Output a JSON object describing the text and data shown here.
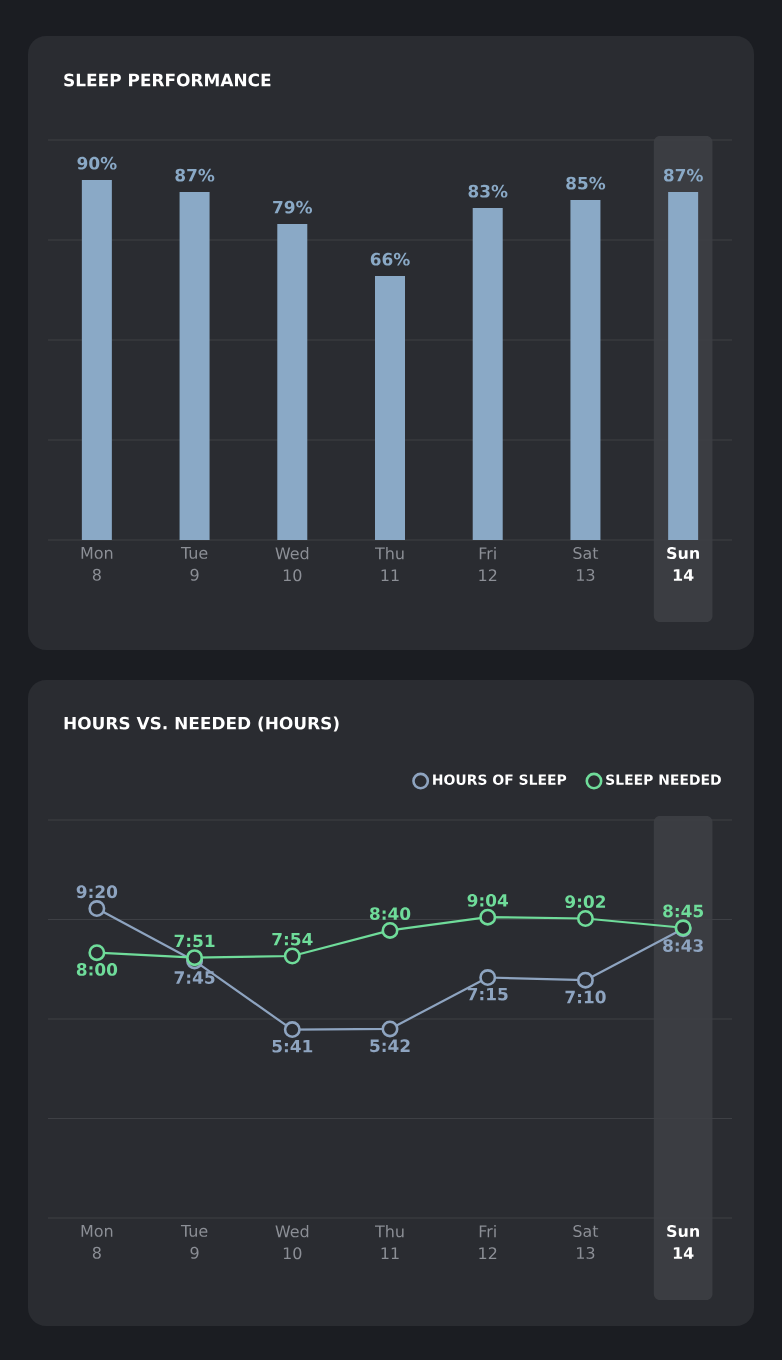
{
  "chart_data": [
    {
      "type": "bar",
      "title": "SLEEP PERFORMANCE",
      "categories": [
        "Mon 8",
        "Tue 9",
        "Wed 10",
        "Thu 11",
        "Fri 12",
        "Sat 13",
        "Sun 14"
      ],
      "values": [
        90,
        87,
        79,
        66,
        83,
        85,
        87
      ],
      "value_labels": [
        "90%",
        "87%",
        "79%",
        "66%",
        "83%",
        "85%",
        "87%"
      ],
      "color": "#8aa9c6",
      "ylim": [
        0,
        100
      ],
      "yticks": [
        {
          "value": 0,
          "label": null
        },
        {
          "value": 25,
          "label": null
        },
        {
          "value": 50,
          "label": null
        },
        {
          "value": 75,
          "label": null
        },
        {
          "value": 100,
          "label": null
        }
      ],
      "grid": "y",
      "tick_labels": "x",
      "bands": [
        {
          "axis": "x",
          "from": "Sun 14",
          "to": "Sun 14",
          "color": "#3b3d42"
        }
      ]
    },
    {
      "type": "line",
      "title": "HOURS VS. NEEDED (HOURS)",
      "categories": [
        "Mon 8",
        "Tue 9",
        "Wed 10",
        "Thu 11",
        "Fri 12",
        "Sat 13",
        "Sun 14"
      ],
      "series": [
        {
          "name": "HOURS OF SLEEP",
          "color": "#8ea4c0",
          "values": [
            9.33,
            7.75,
            5.68,
            5.7,
            7.25,
            7.17,
            8.72
          ],
          "value_labels": [
            "9:20",
            "7:45",
            "5:41",
            "5:42",
            "7:15",
            "7:10",
            "8:43"
          ]
        },
        {
          "name": "SLEEP NEEDED",
          "color": "#6fdc9a",
          "values": [
            8.0,
            7.85,
            7.9,
            8.67,
            9.07,
            9.03,
            8.75
          ],
          "value_labels": [
            "8:00",
            "7:51",
            "7:54",
            "8:40",
            "9:04",
            "9:02",
            "8:45"
          ]
        }
      ],
      "ylim": [
        0,
        12
      ],
      "yticks": [
        {
          "value": 0,
          "label": null
        },
        {
          "value": 3,
          "label": null
        },
        {
          "value": 6,
          "label": null
        },
        {
          "value": 9,
          "label": null
        },
        {
          "value": 12,
          "label": null
        }
      ],
      "grid": "y",
      "tick_labels": "x",
      "legend": "top right",
      "marker": "circle",
      "line_style": "solid",
      "bands": [
        {
          "axis": "x",
          "from": "Sun 14",
          "to": "Sun 14",
          "color": "#3b3d42"
        }
      ]
    }
  ]
}
